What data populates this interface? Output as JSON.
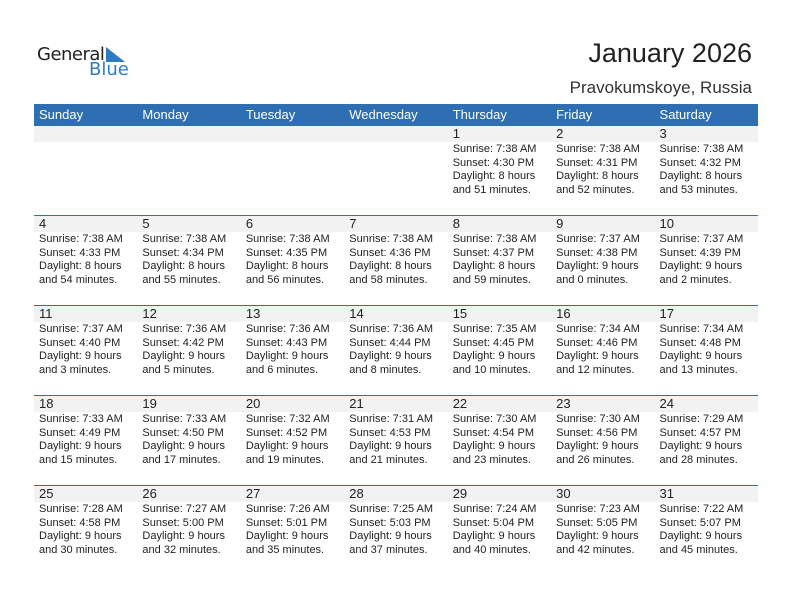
{
  "logo": {
    "line1": "General",
    "line2": "Blue"
  },
  "title": "January 2026",
  "location": "Pravokumskoye, Russia",
  "colors": {
    "header": "#2e6fb3",
    "date_strip": "#f2f2f2",
    "logo_blue": "#2e7bc4"
  },
  "weekdays": [
    "Sunday",
    "Monday",
    "Tuesday",
    "Wednesday",
    "Thursday",
    "Friday",
    "Saturday"
  ],
  "weeks": [
    [
      null,
      null,
      null,
      null,
      {
        "day": "1",
        "sunrise": "Sunrise: 7:38 AM",
        "sunset": "Sunset: 4:30 PM",
        "daylight1": "Daylight: 8 hours",
        "daylight2": "and 51 minutes."
      },
      {
        "day": "2",
        "sunrise": "Sunrise: 7:38 AM",
        "sunset": "Sunset: 4:31 PM",
        "daylight1": "Daylight: 8 hours",
        "daylight2": "and 52 minutes."
      },
      {
        "day": "3",
        "sunrise": "Sunrise: 7:38 AM",
        "sunset": "Sunset: 4:32 PM",
        "daylight1": "Daylight: 8 hours",
        "daylight2": "and 53 minutes."
      }
    ],
    [
      {
        "day": "4",
        "sunrise": "Sunrise: 7:38 AM",
        "sunset": "Sunset: 4:33 PM",
        "daylight1": "Daylight: 8 hours",
        "daylight2": "and 54 minutes."
      },
      {
        "day": "5",
        "sunrise": "Sunrise: 7:38 AM",
        "sunset": "Sunset: 4:34 PM",
        "daylight1": "Daylight: 8 hours",
        "daylight2": "and 55 minutes."
      },
      {
        "day": "6",
        "sunrise": "Sunrise: 7:38 AM",
        "sunset": "Sunset: 4:35 PM",
        "daylight1": "Daylight: 8 hours",
        "daylight2": "and 56 minutes."
      },
      {
        "day": "7",
        "sunrise": "Sunrise: 7:38 AM",
        "sunset": "Sunset: 4:36 PM",
        "daylight1": "Daylight: 8 hours",
        "daylight2": "and 58 minutes."
      },
      {
        "day": "8",
        "sunrise": "Sunrise: 7:38 AM",
        "sunset": "Sunset: 4:37 PM",
        "daylight1": "Daylight: 8 hours",
        "daylight2": "and 59 minutes."
      },
      {
        "day": "9",
        "sunrise": "Sunrise: 7:37 AM",
        "sunset": "Sunset: 4:38 PM",
        "daylight1": "Daylight: 9 hours",
        "daylight2": "and 0 minutes."
      },
      {
        "day": "10",
        "sunrise": "Sunrise: 7:37 AM",
        "sunset": "Sunset: 4:39 PM",
        "daylight1": "Daylight: 9 hours",
        "daylight2": "and 2 minutes."
      }
    ],
    [
      {
        "day": "11",
        "sunrise": "Sunrise: 7:37 AM",
        "sunset": "Sunset: 4:40 PM",
        "daylight1": "Daylight: 9 hours",
        "daylight2": "and 3 minutes."
      },
      {
        "day": "12",
        "sunrise": "Sunrise: 7:36 AM",
        "sunset": "Sunset: 4:42 PM",
        "daylight1": "Daylight: 9 hours",
        "daylight2": "and 5 minutes."
      },
      {
        "day": "13",
        "sunrise": "Sunrise: 7:36 AM",
        "sunset": "Sunset: 4:43 PM",
        "daylight1": "Daylight: 9 hours",
        "daylight2": "and 6 minutes."
      },
      {
        "day": "14",
        "sunrise": "Sunrise: 7:36 AM",
        "sunset": "Sunset: 4:44 PM",
        "daylight1": "Daylight: 9 hours",
        "daylight2": "and 8 minutes."
      },
      {
        "day": "15",
        "sunrise": "Sunrise: 7:35 AM",
        "sunset": "Sunset: 4:45 PM",
        "daylight1": "Daylight: 9 hours",
        "daylight2": "and 10 minutes."
      },
      {
        "day": "16",
        "sunrise": "Sunrise: 7:34 AM",
        "sunset": "Sunset: 4:46 PM",
        "daylight1": "Daylight: 9 hours",
        "daylight2": "and 12 minutes."
      },
      {
        "day": "17",
        "sunrise": "Sunrise: 7:34 AM",
        "sunset": "Sunset: 4:48 PM",
        "daylight1": "Daylight: 9 hours",
        "daylight2": "and 13 minutes."
      }
    ],
    [
      {
        "day": "18",
        "sunrise": "Sunrise: 7:33 AM",
        "sunset": "Sunset: 4:49 PM",
        "daylight1": "Daylight: 9 hours",
        "daylight2": "and 15 minutes."
      },
      {
        "day": "19",
        "sunrise": "Sunrise: 7:33 AM",
        "sunset": "Sunset: 4:50 PM",
        "daylight1": "Daylight: 9 hours",
        "daylight2": "and 17 minutes."
      },
      {
        "day": "20",
        "sunrise": "Sunrise: 7:32 AM",
        "sunset": "Sunset: 4:52 PM",
        "daylight1": "Daylight: 9 hours",
        "daylight2": "and 19 minutes."
      },
      {
        "day": "21",
        "sunrise": "Sunrise: 7:31 AM",
        "sunset": "Sunset: 4:53 PM",
        "daylight1": "Daylight: 9 hours",
        "daylight2": "and 21 minutes."
      },
      {
        "day": "22",
        "sunrise": "Sunrise: 7:30 AM",
        "sunset": "Sunset: 4:54 PM",
        "daylight1": "Daylight: 9 hours",
        "daylight2": "and 23 minutes."
      },
      {
        "day": "23",
        "sunrise": "Sunrise: 7:30 AM",
        "sunset": "Sunset: 4:56 PM",
        "daylight1": "Daylight: 9 hours",
        "daylight2": "and 26 minutes."
      },
      {
        "day": "24",
        "sunrise": "Sunrise: 7:29 AM",
        "sunset": "Sunset: 4:57 PM",
        "daylight1": "Daylight: 9 hours",
        "daylight2": "and 28 minutes."
      }
    ],
    [
      {
        "day": "25",
        "sunrise": "Sunrise: 7:28 AM",
        "sunset": "Sunset: 4:58 PM",
        "daylight1": "Daylight: 9 hours",
        "daylight2": "and 30 minutes."
      },
      {
        "day": "26",
        "sunrise": "Sunrise: 7:27 AM",
        "sunset": "Sunset: 5:00 PM",
        "daylight1": "Daylight: 9 hours",
        "daylight2": "and 32 minutes."
      },
      {
        "day": "27",
        "sunrise": "Sunrise: 7:26 AM",
        "sunset": "Sunset: 5:01 PM",
        "daylight1": "Daylight: 9 hours",
        "daylight2": "and 35 minutes."
      },
      {
        "day": "28",
        "sunrise": "Sunrise: 7:25 AM",
        "sunset": "Sunset: 5:03 PM",
        "daylight1": "Daylight: 9 hours",
        "daylight2": "and 37 minutes."
      },
      {
        "day": "29",
        "sunrise": "Sunrise: 7:24 AM",
        "sunset": "Sunset: 5:04 PM",
        "daylight1": "Daylight: 9 hours",
        "daylight2": "and 40 minutes."
      },
      {
        "day": "30",
        "sunrise": "Sunrise: 7:23 AM",
        "sunset": "Sunset: 5:05 PM",
        "daylight1": "Daylight: 9 hours",
        "daylight2": "and 42 minutes."
      },
      {
        "day": "31",
        "sunrise": "Sunrise: 7:22 AM",
        "sunset": "Sunset: 5:07 PM",
        "daylight1": "Daylight: 9 hours",
        "daylight2": "and 45 minutes."
      }
    ]
  ]
}
